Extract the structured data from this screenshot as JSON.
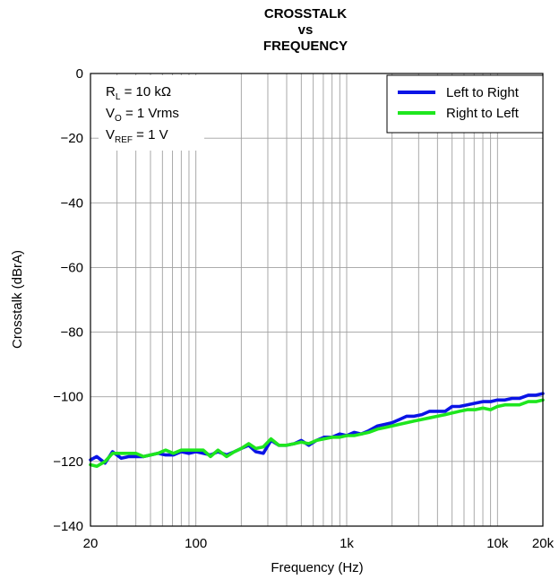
{
  "chart_data": {
    "type": "line",
    "title_lines": [
      "CROSSTALK",
      "vs",
      "FREQUENCY"
    ],
    "xlabel": "Frequency (Hz)",
    "ylabel": "Crosstalk (dBrA)",
    "x_scale": "log",
    "xlim": [
      20,
      20000
    ],
    "ylim": [
      -140,
      0
    ],
    "x_ticks": [
      {
        "value": 20,
        "label": "20"
      },
      {
        "value": 100,
        "label": "100"
      },
      {
        "value": 1000,
        "label": "1k"
      },
      {
        "value": 10000,
        "label": "10k"
      },
      {
        "value": 20000,
        "label": "20k"
      }
    ],
    "y_ticks": [
      {
        "value": 0,
        "label": "0"
      },
      {
        "value": -20,
        "label": "−20"
      },
      {
        "value": -40,
        "label": "−40"
      },
      {
        "value": -60,
        "label": "−60"
      },
      {
        "value": -80,
        "label": "−80"
      },
      {
        "value": -100,
        "label": "−100"
      },
      {
        "value": -120,
        "label": "−120"
      },
      {
        "value": -140,
        "label": "−140"
      }
    ],
    "grid": true,
    "legend_position": "top-right",
    "conditions": [
      {
        "main": "R",
        "sub": "L",
        "rest": " = 10 kΩ"
      },
      {
        "main": "V",
        "sub": "O",
        "rest": " = 1 Vrms"
      },
      {
        "main": "V",
        "sub": "REF",
        "rest": " = 1 V"
      }
    ],
    "series": [
      {
        "name": "Left to Right",
        "color": "#0a14e6",
        "x": [
          20,
          22,
          25,
          28,
          32,
          36,
          40,
          45,
          50,
          56,
          63,
          71,
          80,
          90,
          100,
          112,
          125,
          140,
          160,
          180,
          200,
          224,
          250,
          280,
          315,
          355,
          400,
          450,
          500,
          560,
          630,
          710,
          800,
          900,
          1000,
          1120,
          1250,
          1400,
          1600,
          1800,
          2000,
          2240,
          2500,
          2800,
          3150,
          3550,
          4000,
          4500,
          5000,
          5600,
          6300,
          7100,
          8000,
          9000,
          10000,
          11200,
          12500,
          14000,
          16000,
          18000,
          20000
        ],
        "y": [
          -119.5,
          -118.5,
          -120.5,
          -117.0,
          -119.0,
          -118.5,
          -118.5,
          -118.5,
          -118.0,
          -117.5,
          -118.0,
          -118.0,
          -117.0,
          -117.5,
          -117.0,
          -117.5,
          -118.0,
          -117.0,
          -118.0,
          -117.0,
          -116.0,
          -115.0,
          -117.0,
          -117.5,
          -113.5,
          -115.0,
          -115.0,
          -114.5,
          -113.5,
          -115.0,
          -113.5,
          -112.5,
          -112.5,
          -111.5,
          -112.0,
          -111.0,
          -111.5,
          -110.5,
          -109.0,
          -108.5,
          -108.0,
          -107.0,
          -106.0,
          -106.0,
          -105.5,
          -104.5,
          -104.5,
          -104.5,
          -103.0,
          -103.0,
          -102.5,
          -102.0,
          -101.5,
          -101.5,
          -101.0,
          -101.0,
          -100.5,
          -100.5,
          -99.5,
          -99.5,
          -99.0
        ]
      },
      {
        "name": "Right to Left",
        "color": "#1ee61e",
        "x": [
          20,
          22,
          25,
          28,
          32,
          36,
          40,
          45,
          50,
          56,
          63,
          71,
          80,
          90,
          100,
          112,
          125,
          140,
          160,
          180,
          200,
          224,
          250,
          280,
          315,
          355,
          400,
          450,
          500,
          560,
          630,
          710,
          800,
          900,
          1000,
          1120,
          1250,
          1400,
          1600,
          1800,
          2000,
          2240,
          2500,
          2800,
          3150,
          3550,
          4000,
          4500,
          5000,
          5600,
          6300,
          7100,
          8000,
          9000,
          10000,
          11200,
          12500,
          14000,
          16000,
          18000,
          20000
        ],
        "y": [
          -121.0,
          -121.5,
          -120.0,
          -117.5,
          -117.5,
          -117.5,
          -117.5,
          -118.5,
          -118.0,
          -117.5,
          -116.5,
          -117.5,
          -116.5,
          -116.5,
          -116.5,
          -116.5,
          -118.5,
          -116.5,
          -118.5,
          -117.0,
          -116.0,
          -114.5,
          -116.0,
          -115.5,
          -113.0,
          -115.0,
          -115.0,
          -114.5,
          -114.0,
          -114.5,
          -113.5,
          -113.0,
          -112.5,
          -112.5,
          -112.0,
          -112.0,
          -111.5,
          -111.0,
          -110.0,
          -109.5,
          -109.0,
          -108.5,
          -108.0,
          -107.5,
          -107.0,
          -106.5,
          -106.0,
          -105.5,
          -105.0,
          -104.5,
          -104.0,
          -104.0,
          -103.5,
          -104.0,
          -103.0,
          -102.5,
          -102.5,
          -102.5,
          -101.5,
          -101.5,
          -101.0
        ]
      }
    ]
  }
}
